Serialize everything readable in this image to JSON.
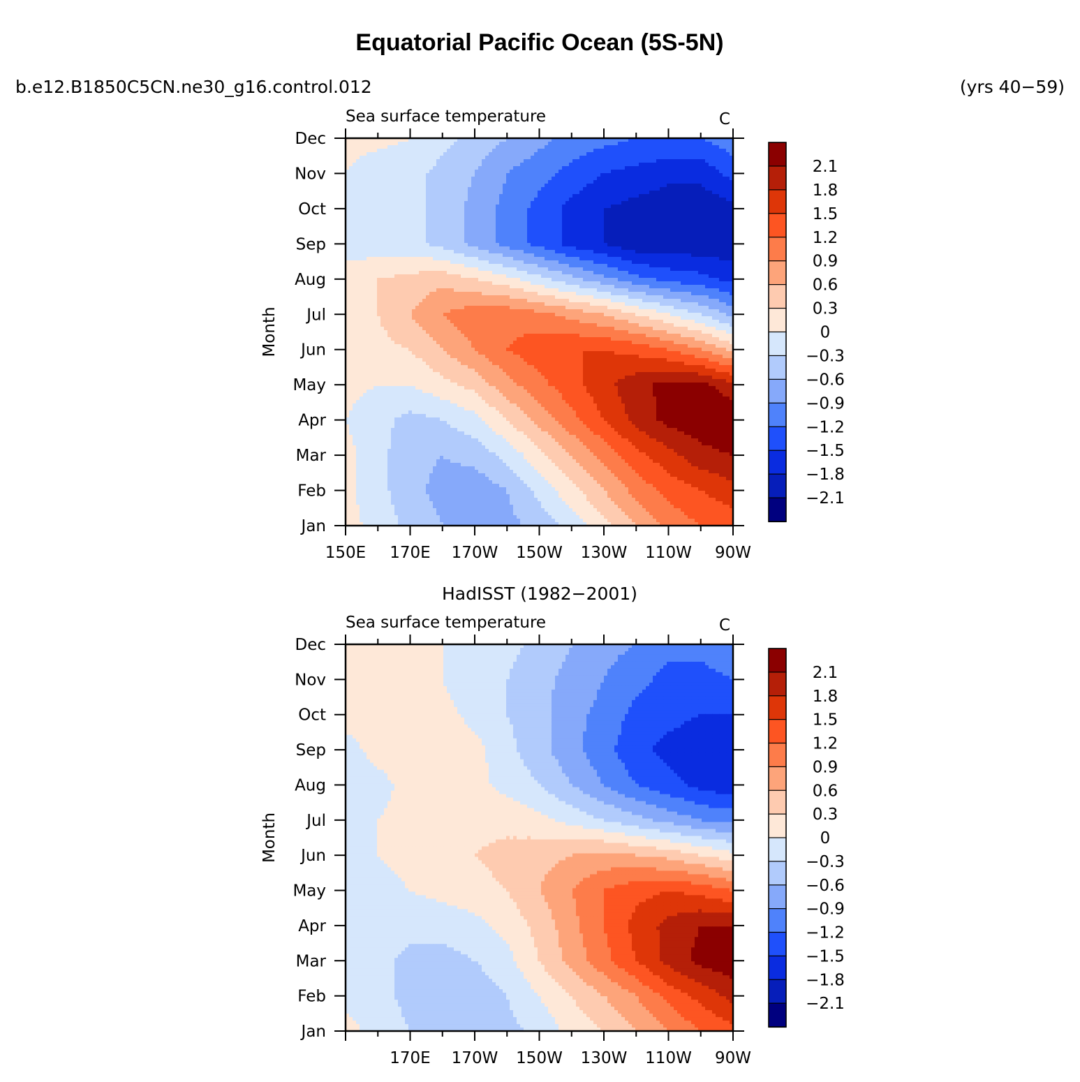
{
  "title": "Equatorial Pacific Ocean (5S-5N)",
  "case_name": "b.e12.B1850C5CN.ne30_g16.control.012",
  "years": "(yrs 40−59)",
  "chart_data": [
    {
      "type": "heatmap",
      "panel_title": "",
      "left_string": "Sea surface temperature",
      "right_string": "C",
      "ylabel": "Month",
      "x_tick_labels": [
        "150E",
        "170E",
        "170W",
        "150W",
        "130W",
        "110W",
        "90W"
      ],
      "y_tick_labels": [
        "Jan",
        "Feb",
        "Mar",
        "Apr",
        "May",
        "Jun",
        "Jul",
        "Aug",
        "Sep",
        "Oct",
        "Nov",
        "Dec"
      ],
      "x": [
        150,
        160,
        170,
        180,
        190,
        200,
        210,
        220,
        230,
        240,
        250,
        260,
        270
      ],
      "contour_levels": [
        -2.1,
        -1.8,
        -1.5,
        -1.2,
        -0.9,
        -0.6,
        -0.3,
        0,
        0.3,
        0.6,
        0.9,
        1.2,
        1.5,
        1.8,
        2.1
      ],
      "z": [
        [
          0.1,
          -0.1,
          -0.4,
          -0.6,
          -0.8,
          -0.7,
          -0.5,
          -0.2,
          0.2,
          0.6,
          1.0,
          1.2,
          1.3
        ],
        [
          0.1,
          -0.2,
          -0.5,
          -0.7,
          -0.8,
          -0.6,
          -0.2,
          0.2,
          0.6,
          1.0,
          1.3,
          1.5,
          1.7
        ],
        [
          0.1,
          -0.2,
          -0.5,
          -0.6,
          -0.5,
          -0.2,
          0.2,
          0.6,
          1.0,
          1.4,
          1.7,
          2.0,
          2.1
        ],
        [
          0.0,
          -0.2,
          -0.4,
          -0.3,
          -0.1,
          0.3,
          0.7,
          1.1,
          1.5,
          1.9,
          2.2,
          2.3,
          2.4
        ],
        [
          0.1,
          0.0,
          0.0,
          0.2,
          0.4,
          0.8,
          1.1,
          1.4,
          1.7,
          2.0,
          2.2,
          2.2,
          1.9
        ],
        [
          0.1,
          0.2,
          0.3,
          0.6,
          0.9,
          1.2,
          1.4,
          1.5,
          1.5,
          1.4,
          1.2,
          0.9,
          0.5
        ],
        [
          0.1,
          0.3,
          0.6,
          0.9,
          1.1,
          1.1,
          1.0,
          0.8,
          0.6,
          0.3,
          0.0,
          -0.3,
          -0.7
        ],
        [
          0.1,
          0.3,
          0.4,
          0.5,
          0.3,
          0.1,
          -0.2,
          -0.5,
          -0.8,
          -1.1,
          -1.3,
          -1.4,
          -1.6
        ],
        [
          -0.1,
          -0.2,
          -0.2,
          -0.4,
          -0.7,
          -1.0,
          -1.3,
          -1.6,
          -1.8,
          -2.0,
          -2.0,
          -2.0,
          -2.0
        ],
        [
          -0.1,
          -0.2,
          -0.2,
          -0.4,
          -0.7,
          -1.0,
          -1.3,
          -1.6,
          -1.8,
          -1.9,
          -2.0,
          -2.0,
          -1.9
        ],
        [
          0.0,
          -0.2,
          -0.2,
          -0.4,
          -0.6,
          -0.9,
          -1.1,
          -1.3,
          -1.5,
          -1.6,
          -1.7,
          -1.7,
          -1.4
        ],
        [
          0.1,
          0.1,
          0.0,
          -0.2,
          -0.4,
          -0.6,
          -0.8,
          -1.0,
          -1.1,
          -1.2,
          -1.2,
          -1.2,
          -1.0
        ]
      ]
    },
    {
      "type": "heatmap",
      "panel_title": "HadISST (1982−2001)",
      "left_string": "Sea surface temperature",
      "right_string": "C",
      "ylabel": "Month",
      "x_tick_labels": [
        "170E",
        "170W",
        "150W",
        "130W",
        "110W",
        "90W"
      ],
      "y_tick_labels": [
        "Jan",
        "Feb",
        "Mar",
        "Apr",
        "May",
        "Jun",
        "Jul",
        "Aug",
        "Sep",
        "Oct",
        "Nov",
        "Dec"
      ],
      "x": [
        150,
        160,
        170,
        180,
        190,
        200,
        210,
        220,
        230,
        240,
        250,
        260,
        270
      ],
      "contour_levels": [
        -2.1,
        -1.8,
        -1.5,
        -1.2,
        -0.9,
        -0.6,
        -0.3,
        0,
        0.3,
        0.6,
        0.9,
        1.2,
        1.5,
        1.8,
        2.1
      ],
      "z": [
        [
          0.1,
          -0.1,
          -0.3,
          -0.5,
          -0.5,
          -0.4,
          -0.2,
          0.1,
          0.3,
          0.6,
          0.9,
          1.2,
          1.4
        ],
        [
          -0.1,
          -0.2,
          -0.4,
          -0.5,
          -0.5,
          -0.3,
          0.0,
          0.3,
          0.6,
          0.9,
          1.3,
          1.6,
          1.9
        ],
        [
          -0.1,
          -0.2,
          -0.4,
          -0.4,
          -0.3,
          -0.1,
          0.3,
          0.7,
          1.1,
          1.5,
          1.9,
          2.2,
          2.3
        ],
        [
          -0.1,
          -0.1,
          -0.2,
          -0.2,
          -0.1,
          0.1,
          0.4,
          0.8,
          1.2,
          1.6,
          1.9,
          2.1,
          2.1
        ],
        [
          -0.1,
          -0.1,
          0.0,
          0.1,
          0.2,
          0.3,
          0.6,
          0.9,
          1.2,
          1.4,
          1.5,
          1.4,
          1.2
        ],
        [
          -0.1,
          0.0,
          0.1,
          0.2,
          0.3,
          0.4,
          0.5,
          0.6,
          0.7,
          0.6,
          0.5,
          0.3,
          0.1
        ],
        [
          -0.2,
          0.0,
          0.1,
          0.2,
          0.2,
          0.2,
          0.1,
          -0.1,
          -0.3,
          -0.5,
          -0.7,
          -0.9,
          -1.0
        ],
        [
          -0.2,
          -0.1,
          0.1,
          0.1,
          0.1,
          -0.1,
          -0.3,
          -0.6,
          -0.9,
          -1.2,
          -1.4,
          -1.6,
          -1.7
        ],
        [
          -0.1,
          0.1,
          0.2,
          0.3,
          0.1,
          -0.2,
          -0.5,
          -0.8,
          -1.1,
          -1.4,
          -1.6,
          -1.7,
          -1.7
        ],
        [
          0.1,
          0.1,
          0.2,
          0.1,
          -0.1,
          -0.3,
          -0.5,
          -0.8,
          -1.0,
          -1.3,
          -1.4,
          -1.5,
          -1.5
        ],
        [
          0.1,
          0.1,
          0.1,
          0.0,
          -0.2,
          -0.3,
          -0.5,
          -0.7,
          -0.9,
          -1.1,
          -1.3,
          -1.3,
          -1.2
        ],
        [
          0.1,
          0.1,
          0.1,
          0.0,
          -0.1,
          -0.2,
          -0.4,
          -0.6,
          -0.8,
          -0.9,
          -1.1,
          -1.1,
          -1.0
        ]
      ]
    }
  ],
  "colorbar": {
    "labels": [
      "2.1",
      "1.8",
      "1.5",
      "1.2",
      "0.9",
      "0.6",
      "0.3",
      "0",
      "−0.3",
      "−0.6",
      "−0.9",
      "−1.2",
      "−1.5",
      "−1.8",
      "−2.1"
    ],
    "colors": [
      "#8b0000",
      "#b51f08",
      "#de3608",
      "#fd5522",
      "#fd7c4a",
      "#fda47a",
      "#fecbb0",
      "#fee8d8",
      "#d6e7fc",
      "#b1cbfc",
      "#86a9fa",
      "#4f82fb",
      "#1f50fb",
      "#0a2ce0",
      "#061eba",
      "#00007f"
    ]
  },
  "colors": {
    "border": "#000000",
    "background": "#ffffff"
  }
}
